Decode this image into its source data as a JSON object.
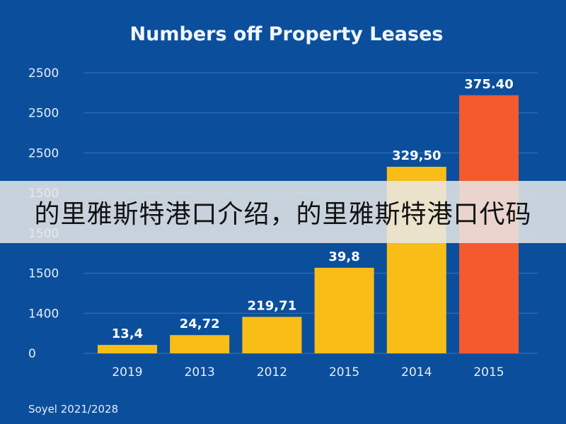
{
  "colors": {
    "background": "#0b4f9c",
    "bar": "#f9bd18",
    "highlight_bar": "#f45a2d",
    "grid": "#3a73b8",
    "text": "#e6eef9",
    "banner_bg": "#e8e8e8"
  },
  "chart_data": {
    "type": "bar",
    "title": "Numbers off Property Leases",
    "xlabel": "",
    "ylabel": "",
    "y_tick_labels": [
      "2500",
      "2500",
      "2500",
      "1500",
      "1500",
      "1500",
      "1400",
      "0"
    ],
    "categories": [
      "2019",
      "2013",
      "2012",
      "2015",
      "2014",
      "2015"
    ],
    "values": [
      13.4,
      24.72,
      219.71,
      39.8,
      329.5,
      375.4
    ],
    "value_labels": [
      "13,4",
      "24,72",
      "219,71",
      "39,8",
      "329,50",
      "375.40"
    ],
    "bar_fill_fraction": [
      0.03,
      0.065,
      0.13,
      0.305,
      0.665,
      0.92
    ],
    "highlight_index": 5,
    "grid": true,
    "legend": "none"
  },
  "footer": {
    "source": "Soyel 2021/2028"
  },
  "overlay_banner": {
    "text": "的里雅斯特港口介绍，的里雅斯特港口代码"
  }
}
